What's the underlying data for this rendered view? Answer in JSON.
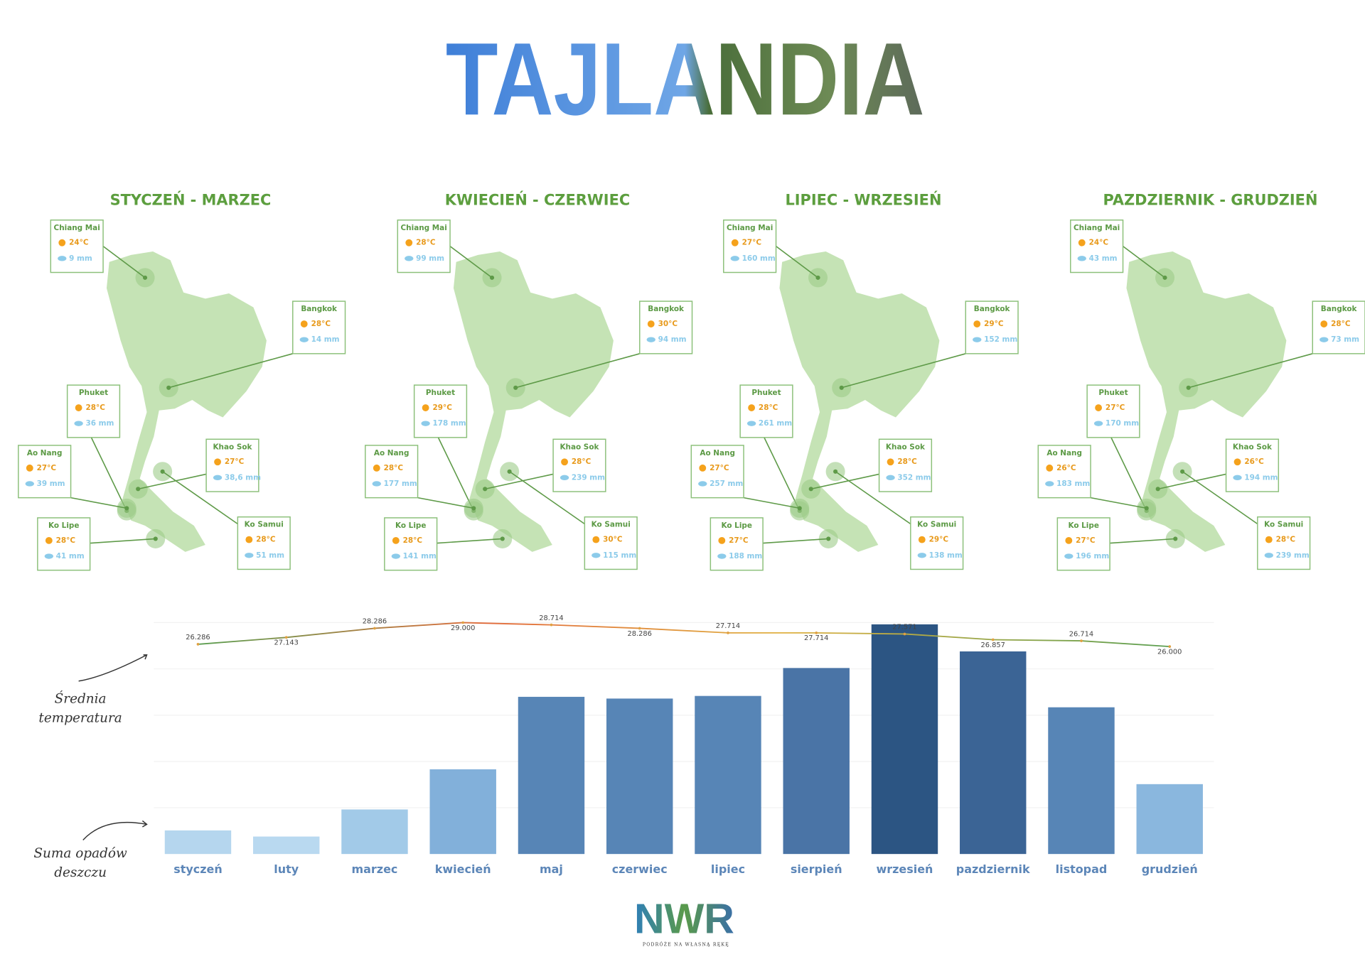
{
  "header": {
    "title": "TAJLANDIA"
  },
  "seasons": [
    {
      "title": "STYCZEŃ - MARZEC",
      "locations": [
        {
          "name": "Chiang Mai",
          "temp": "24°C",
          "rain": "9 mm"
        },
        {
          "name": "Bangkok",
          "temp": "28°C",
          "rain": "14 mm"
        },
        {
          "name": "Phuket",
          "temp": "28°C",
          "rain": "36 mm"
        },
        {
          "name": "Ao Nang",
          "temp": "27°C",
          "rain": "39 mm"
        },
        {
          "name": "Khao Sok",
          "temp": "27°C",
          "rain": "38,6 mm"
        },
        {
          "name": "Ko Lipe",
          "temp": "28°C",
          "rain": "41 mm"
        },
        {
          "name": "Ko Samui",
          "temp": "28°C",
          "rain": "51 mm"
        }
      ]
    },
    {
      "title": "KWIECIEŃ - CZERWIEC",
      "locations": [
        {
          "name": "Chiang Mai",
          "temp": "28°C",
          "rain": "99 mm"
        },
        {
          "name": "Bangkok",
          "temp": "30°C",
          "rain": "94 mm"
        },
        {
          "name": "Phuket",
          "temp": "29°C",
          "rain": "178 mm"
        },
        {
          "name": "Ao Nang",
          "temp": "28°C",
          "rain": "177 mm"
        },
        {
          "name": "Khao Sok",
          "temp": "28°C",
          "rain": "239 mm"
        },
        {
          "name": "Ko Lipe",
          "temp": "28°C",
          "rain": "141 mm"
        },
        {
          "name": "Ko Samui",
          "temp": "30°C",
          "rain": "115 mm"
        }
      ]
    },
    {
      "title": "LIPIEC - WRZESIEŃ",
      "locations": [
        {
          "name": "Chiang Mai",
          "temp": "27°C",
          "rain": "160 mm"
        },
        {
          "name": "Bangkok",
          "temp": "29°C",
          "rain": "152 mm"
        },
        {
          "name": "Phuket",
          "temp": "28°C",
          "rain": "261 mm"
        },
        {
          "name": "Ao Nang",
          "temp": "27°C",
          "rain": "257 mm"
        },
        {
          "name": "Khao Sok",
          "temp": "28°C",
          "rain": "352 mm"
        },
        {
          "name": "Ko Lipe",
          "temp": "27°C",
          "rain": "188 mm"
        },
        {
          "name": "Ko Samui",
          "temp": "29°C",
          "rain": "138 mm"
        }
      ]
    },
    {
      "title": "PAZDZIERNIK - GRUDZIEŃ",
      "locations": [
        {
          "name": "Chiang Mai",
          "temp": "24°C",
          "rain": "43 mm"
        },
        {
          "name": "Bangkok",
          "temp": "28°C",
          "rain": "73 mm"
        },
        {
          "name": "Phuket",
          "temp": "27°C",
          "rain": "170 mm"
        },
        {
          "name": "Ao Nang",
          "temp": "26°C",
          "rain": "183 mm"
        },
        {
          "name": "Khao Sok",
          "temp": "26°C",
          "rain": "194 mm"
        },
        {
          "name": "Ko Lipe",
          "temp": "27°C",
          "rain": "196 mm"
        },
        {
          "name": "Ko Samui",
          "temp": "28°C",
          "rain": "239 mm"
        }
      ]
    }
  ],
  "chart_data": {
    "type": "bar",
    "categories": [
      "styczeń",
      "luty",
      "marzec",
      "kwiecień",
      "maj",
      "czerwiec",
      "lipiec",
      "sierpień",
      "wrzesień",
      "pazdziernik",
      "listopad",
      "grudzień"
    ],
    "ylim": [
      0,
      265
    ],
    "y2lim": [
      0,
      29
    ],
    "series": [
      {
        "type": "bar",
        "values": [
          27,
          20,
          51,
          97,
          180,
          178,
          181,
          213,
          263,
          232,
          168,
          80
        ],
        "colors": [
          "#b5d6ee",
          "#b9d9f0",
          "#a2cae8",
          "#82b0da",
          "#5785b6",
          "#5785b6",
          "#5785b6",
          "#4a74a6",
          "#2c5583",
          "#3b6495",
          "#5785b6",
          "#8ab7de"
        ]
      },
      {
        "type": "line",
        "axis": "y2",
        "color": "#e0a040",
        "values": [
          26.286,
          27.143,
          28.286,
          29,
          28.714,
          28.286,
          27.714,
          27.714,
          27.571,
          26.857,
          26.714,
          26
        ],
        "value_labels": [
          "26.286",
          "27.143",
          "28.286",
          "29.000",
          "28.714",
          "28.286",
          "27.714",
          "27.714",
          "27.571",
          "26.857",
          "26.714",
          "26.000"
        ]
      }
    ],
    "annotations": [
      {
        "lines": [
          "Średnia",
          "temperatura"
        ]
      },
      {
        "lines": [
          "Suma opadów",
          "deszczu"
        ]
      }
    ]
  },
  "footer": {
    "logo": "NWR",
    "tagline": "PODRÓŻE NA WŁASNĄ RĘKĘ"
  }
}
